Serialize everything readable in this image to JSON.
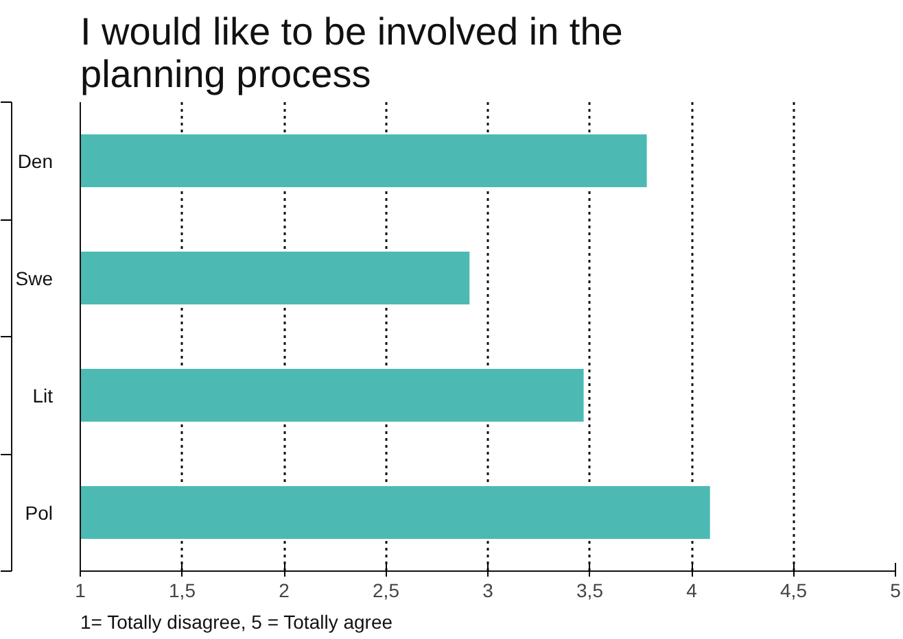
{
  "chart_data": {
    "type": "bar",
    "orientation": "horizontal",
    "title": "I would like to be involved in the planning process",
    "categories": [
      "Den",
      "Swe",
      "Lit",
      "Pol"
    ],
    "values": [
      3.78,
      2.91,
      3.47,
      4.09
    ],
    "color": "#4cbab3",
    "xlim": [
      1,
      5
    ],
    "xticks": [
      1,
      {
        "value": 1.5,
        "label": "1,5"
      },
      2,
      {
        "value": 2.5,
        "label": "2,5"
      },
      3,
      {
        "value": 3.5,
        "label": "3,5"
      },
      4,
      {
        "value": 4.5,
        "label": "4,5"
      },
      5
    ],
    "grid": "x",
    "annotations": [
      "1= Totally disagree, 5 = Totally agree"
    ]
  }
}
